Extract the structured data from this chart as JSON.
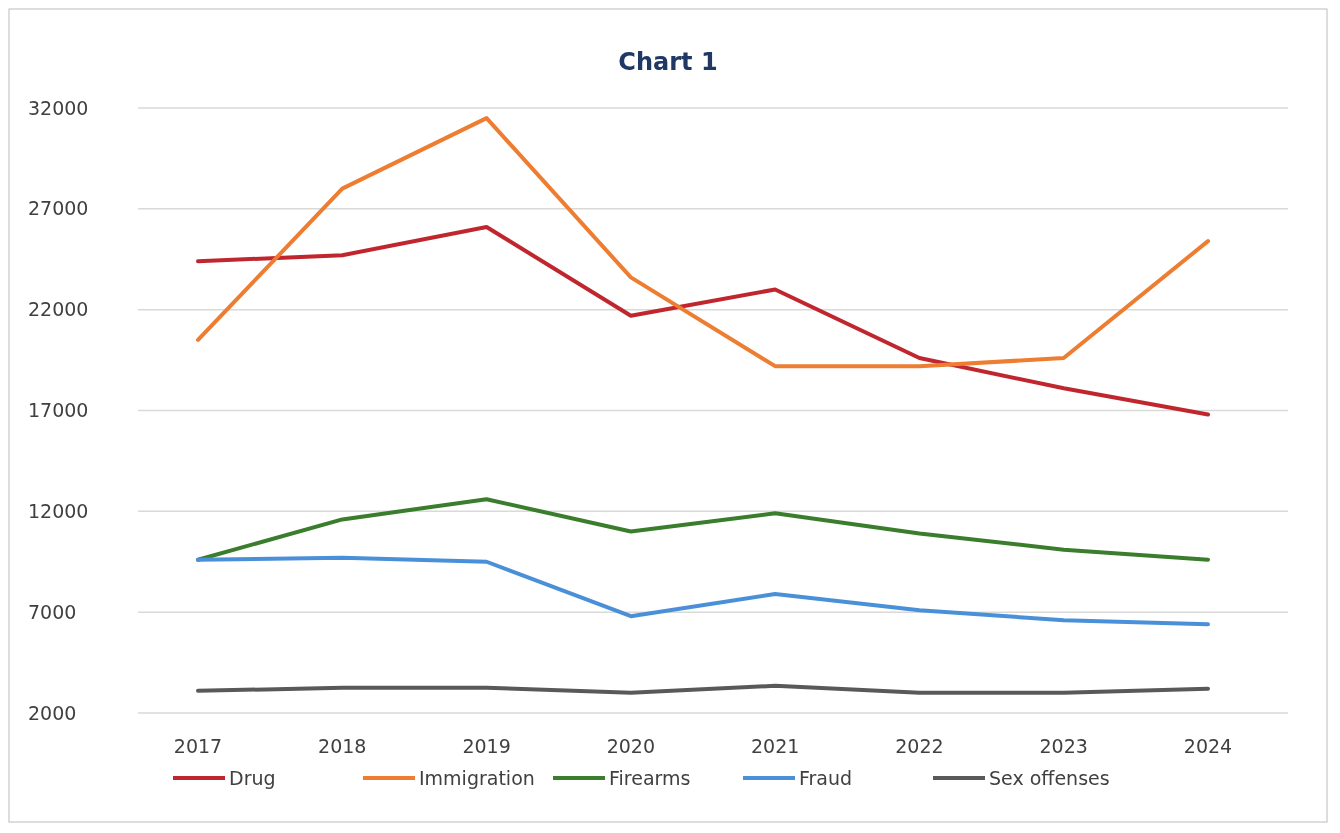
{
  "chart_data": {
    "type": "line",
    "title": "Chart 1",
    "categories": [
      "2017",
      "2018",
      "2019",
      "2020",
      "2021",
      "2022",
      "2023",
      "2024"
    ],
    "series": [
      {
        "name": "Drug",
        "color": "#c0262d",
        "values": [
          24400,
          24700,
          26100,
          21700,
          23000,
          19600,
          18100,
          16800
        ]
      },
      {
        "name": "Immigration",
        "color": "#ed7d31",
        "values": [
          20500,
          28000,
          31500,
          23600,
          19200,
          19200,
          19600,
          25400
        ]
      },
      {
        "name": "Firearms",
        "color": "#3a7d2c",
        "values": [
          9600,
          11600,
          12600,
          11000,
          11900,
          10900,
          10100,
          9600
        ]
      },
      {
        "name": "Fraud",
        "color": "#4a90d9",
        "values": [
          9600,
          9700,
          9500,
          6800,
          7900,
          7100,
          6600,
          6400
        ]
      },
      {
        "name": "Sex offenses",
        "color": "#595959",
        "values": [
          3100,
          3250,
          3250,
          3000,
          3350,
          3000,
          3000,
          3200
        ]
      }
    ],
    "ylim": [
      2000,
      32000
    ],
    "yticks": [
      2000,
      7000,
      12000,
      17000,
      22000,
      27000,
      32000
    ],
    "grid": "y",
    "legend": "bottom",
    "marker": "none",
    "line_style": "solid"
  }
}
